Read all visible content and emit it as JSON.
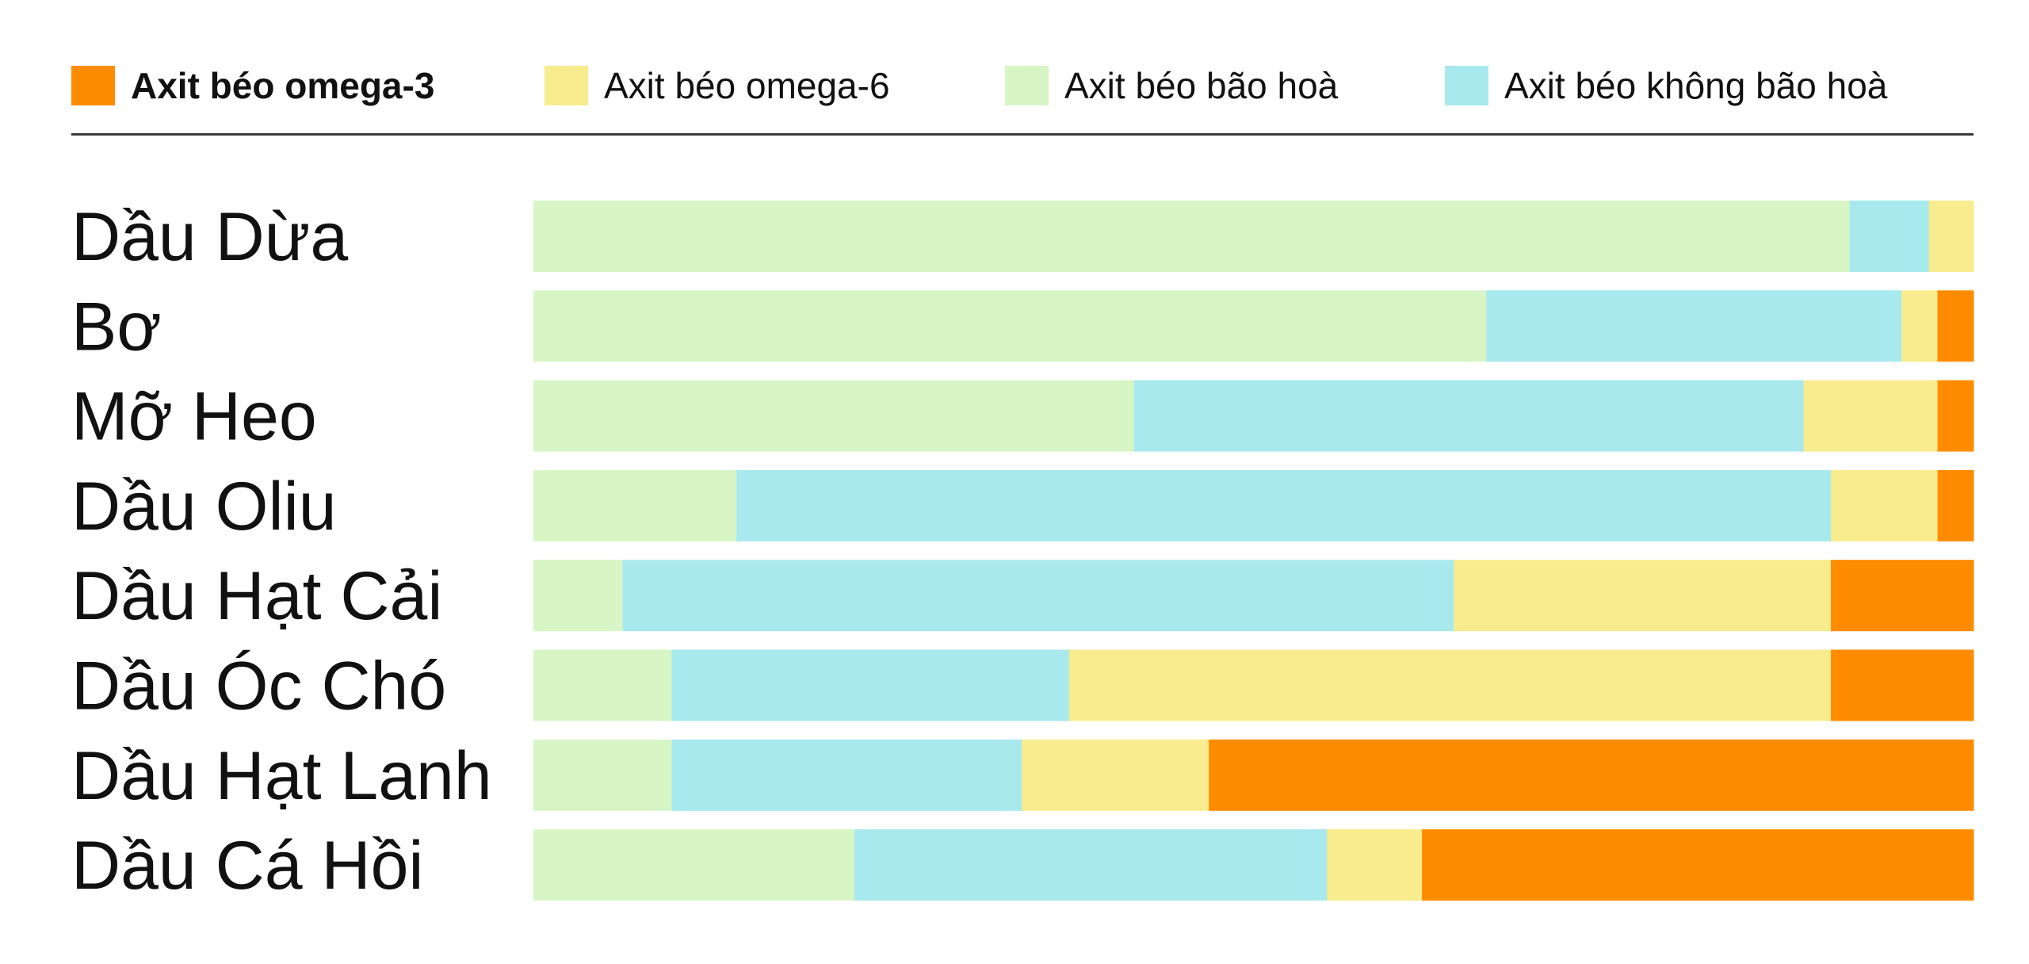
{
  "chart_data": {
    "type": "bar",
    "orientation": "horizontal",
    "stacked": true,
    "normalized": true,
    "unit": "%",
    "legend_position": "top",
    "grid": false,
    "categories": [
      "Dầu Dừa",
      "Bơ",
      "Mỡ Heo",
      "Dầu Oliu",
      "Dầu Hạt Cải",
      "Dầu Óc Chó",
      "Dầu Hạt Lanh",
      "Dầu Cá Hồi"
    ],
    "series": [
      {
        "name": "Axit béo bão hoà",
        "color": "#d8f5c6",
        "values": [
          91.4,
          66.1,
          41.7,
          14.1,
          6.2,
          9.6,
          9.6,
          22.3
        ]
      },
      {
        "name": "Axit béo không bão hoà",
        "color": "#a8e9ee",
        "values": [
          5.5,
          28.8,
          46.5,
          76.0,
          57.7,
          27.6,
          24.3,
          32.8
        ]
      },
      {
        "name": "Axit béo omega-6",
        "color": "#f8ec8e",
        "values": [
          3.1,
          2.5,
          9.3,
          7.4,
          26.2,
          52.9,
          13.0,
          6.6
        ]
      },
      {
        "name": "Axit béo omega-3",
        "color": "#ff8c00",
        "values": [
          0,
          2.5,
          2.5,
          2.5,
          9.9,
          9.9,
          53.1,
          38.3
        ]
      }
    ]
  },
  "legend": [
    {
      "label": "Axit béo omega-3",
      "color": "#ff8c00",
      "bold": true
    },
    {
      "label": "Axit béo omega-6",
      "color": "#f8ec8e",
      "bold": false
    },
    {
      "label": "Axit béo bão hoà",
      "color": "#d8f5c6",
      "bold": false
    },
    {
      "label": "Axit béo không bão hoà",
      "color": "#a8e9ee",
      "bold": false
    }
  ]
}
